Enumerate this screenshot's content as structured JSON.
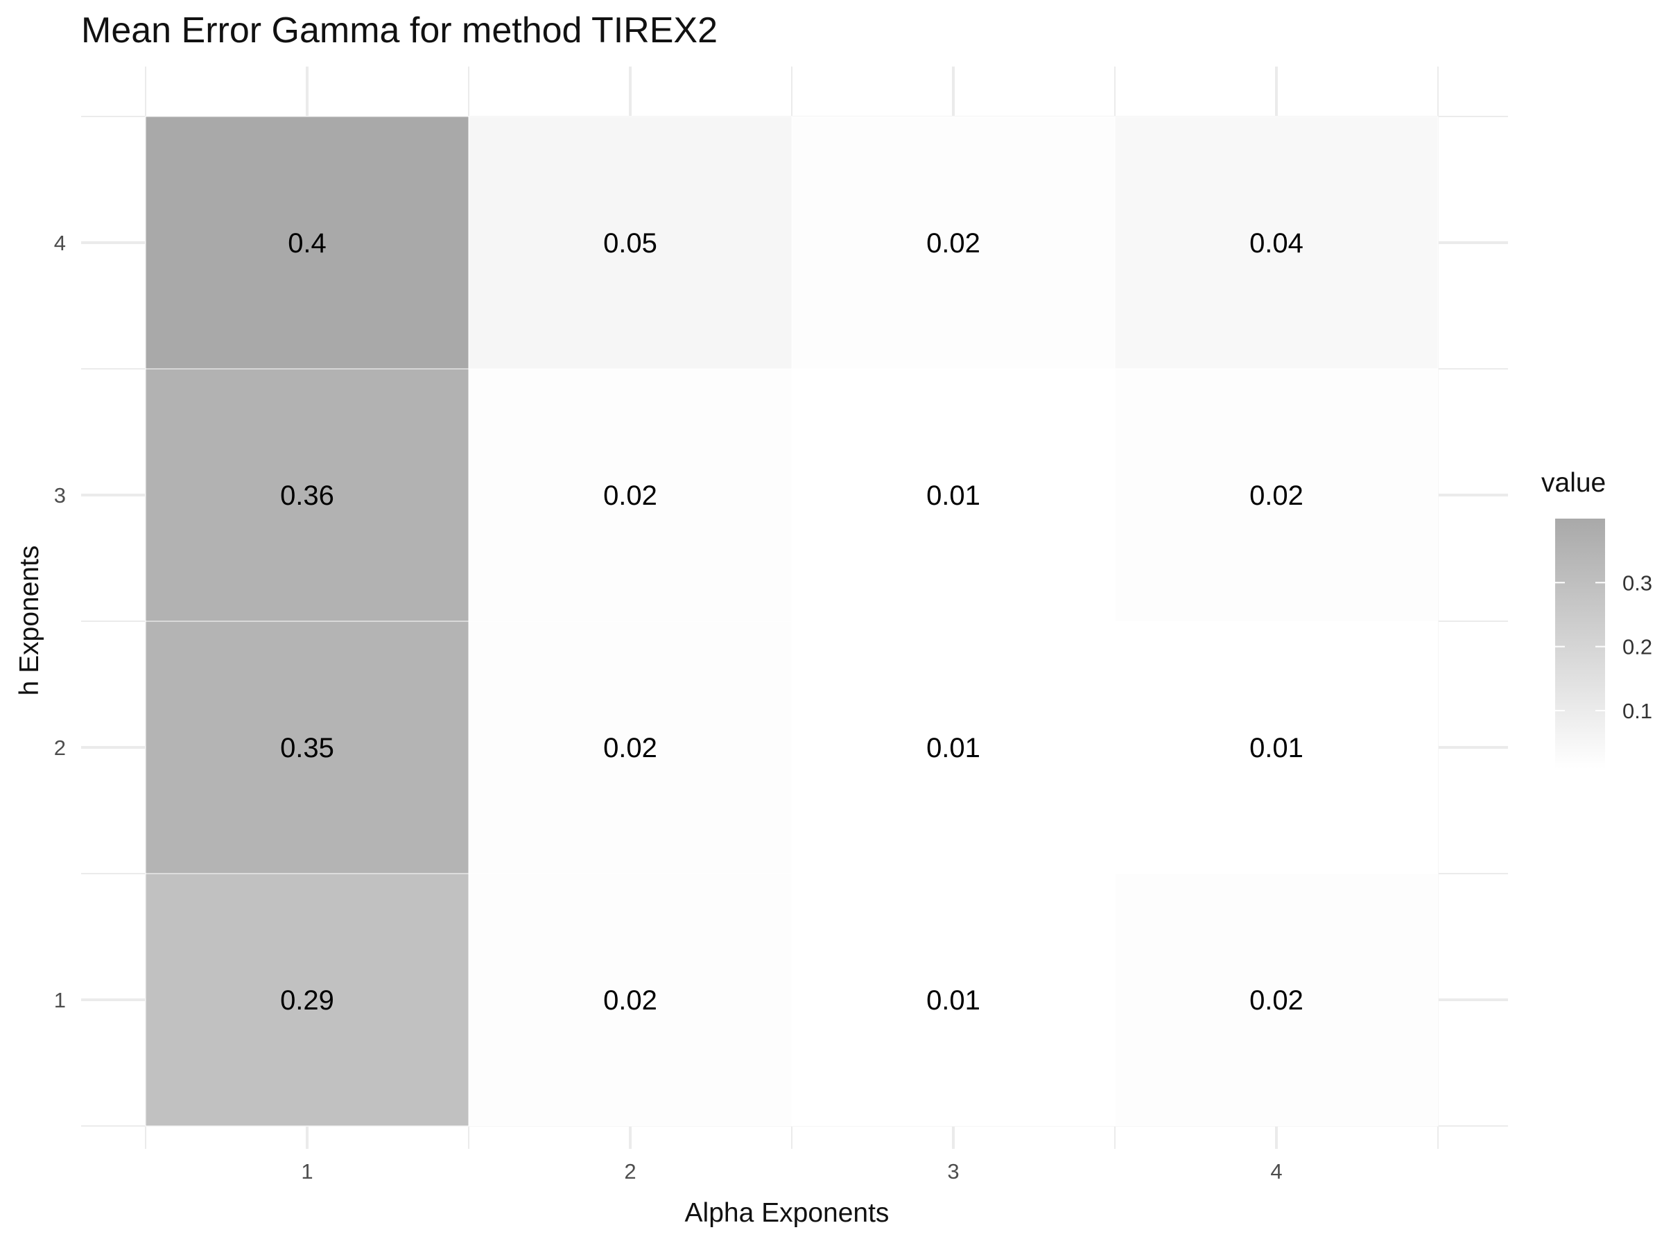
{
  "chart_data": {
    "type": "heatmap",
    "title": "Mean Error Gamma for method TIREX2",
    "xlabel": "Alpha Exponents",
    "ylabel": "h Exponents",
    "x_categories": [
      "1",
      "2",
      "3",
      "4"
    ],
    "y_categories": [
      "1",
      "2",
      "3",
      "4"
    ],
    "values": [
      [
        0.29,
        0.02,
        0.01,
        0.02
      ],
      [
        0.35,
        0.02,
        0.01,
        0.01
      ],
      [
        0.36,
        0.02,
        0.01,
        0.02
      ],
      [
        0.4,
        0.05,
        0.02,
        0.04
      ]
    ],
    "legend": {
      "title": "value",
      "ticks": [
        0.1,
        0.2,
        0.3
      ],
      "tick_labels": [
        "0.1",
        "0.2",
        "0.3"
      ],
      "range": [
        0.01,
        0.4
      ],
      "low_color": "#ffffff",
      "high_color": "#a9a9a9",
      "placement": "right"
    },
    "grid": true
  }
}
